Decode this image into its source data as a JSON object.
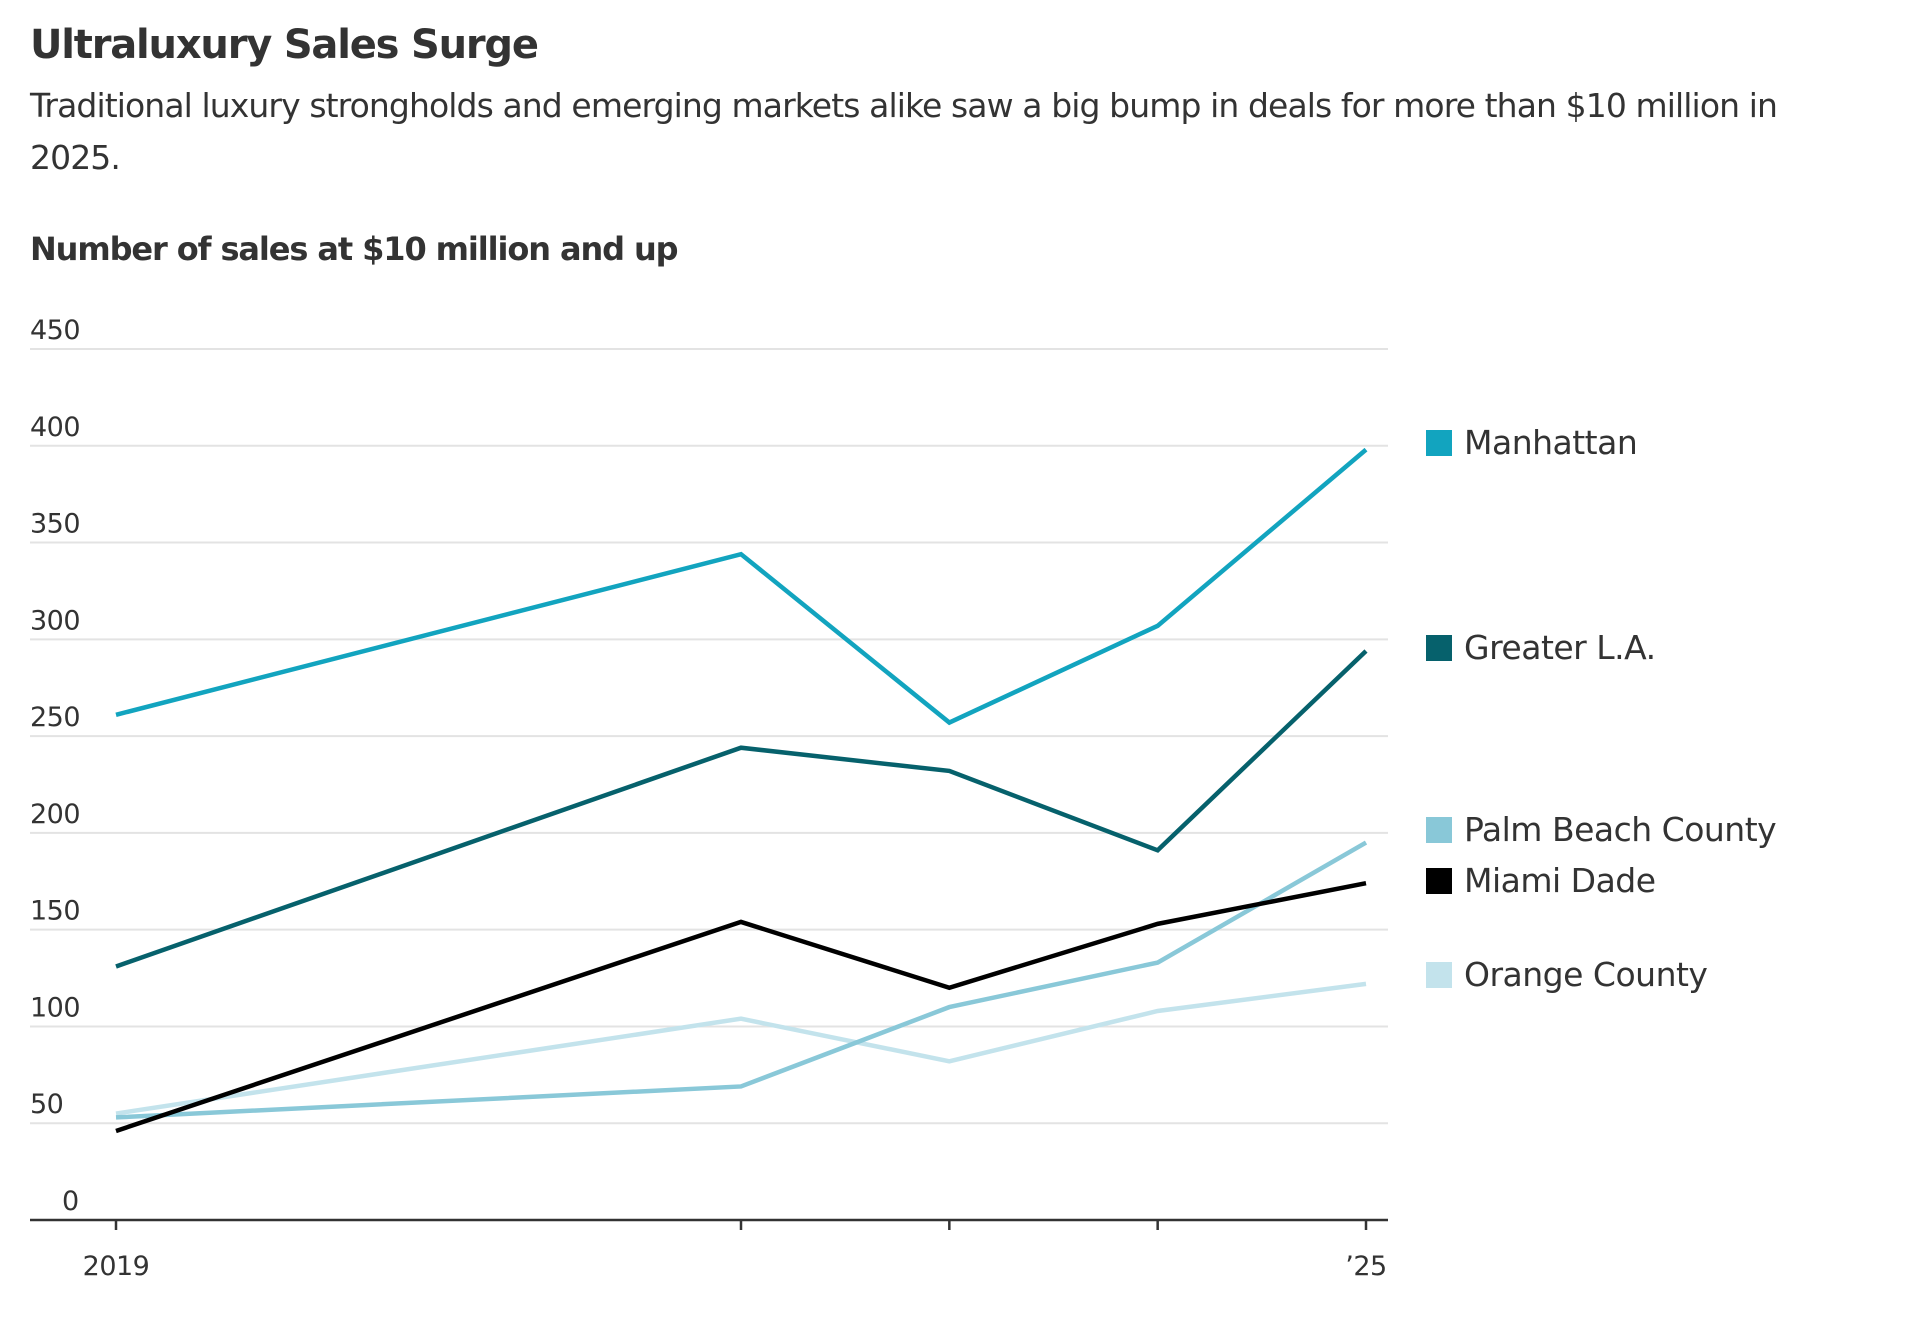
{
  "header": {
    "title": "Ultraluxury Sales Surge",
    "subtitle": "Traditional luxury strongholds and emerging markets alike saw a big bump in deals for more than $10 million in 2025."
  },
  "chart_data": {
    "type": "line",
    "title": "Ultraluxury Sales Surge",
    "subtitle": "Traditional luxury strongholds and emerging markets alike saw a big bump in deals for more than $10 million in 2025.",
    "ylabel": "Number of sales at $10 million and up",
    "xlabel": "",
    "x": [
      2019,
      2022,
      2023,
      2024,
      2025
    ],
    "xlim": [
      2019,
      2025
    ],
    "x_ticks": [
      2019,
      2022,
      2023,
      2024,
      2025
    ],
    "x_tick_labels": [
      "2019",
      "",
      "",
      "",
      "’25"
    ],
    "ylim": [
      0,
      450
    ],
    "y_ticks": [
      0,
      50,
      100,
      150,
      200,
      250,
      300,
      350,
      400,
      450
    ],
    "y_tick_labels": [
      "0",
      "50",
      "100",
      "150",
      "200",
      "250",
      "300",
      "350",
      "400",
      "450"
    ],
    "grid": true,
    "legend_placement": "right",
    "series": [
      {
        "name": "Manhattan",
        "color": "#12a4bf",
        "values": [
          261,
          344,
          257,
          307,
          398
        ]
      },
      {
        "name": "Greater L.A.",
        "color": "#06616c",
        "values": [
          131,
          244,
          232,
          191,
          294
        ]
      },
      {
        "name": "Palm Beach County",
        "color": "#89c8d8",
        "values": [
          53,
          69,
          110,
          133,
          195
        ]
      },
      {
        "name": "Miami Dade",
        "color": "#000000",
        "values": [
          46,
          154,
          120,
          153,
          174
        ]
      },
      {
        "name": "Orange County",
        "color": "#c3e3ec",
        "values": [
          55,
          104,
          82,
          108,
          122
        ]
      }
    ]
  }
}
